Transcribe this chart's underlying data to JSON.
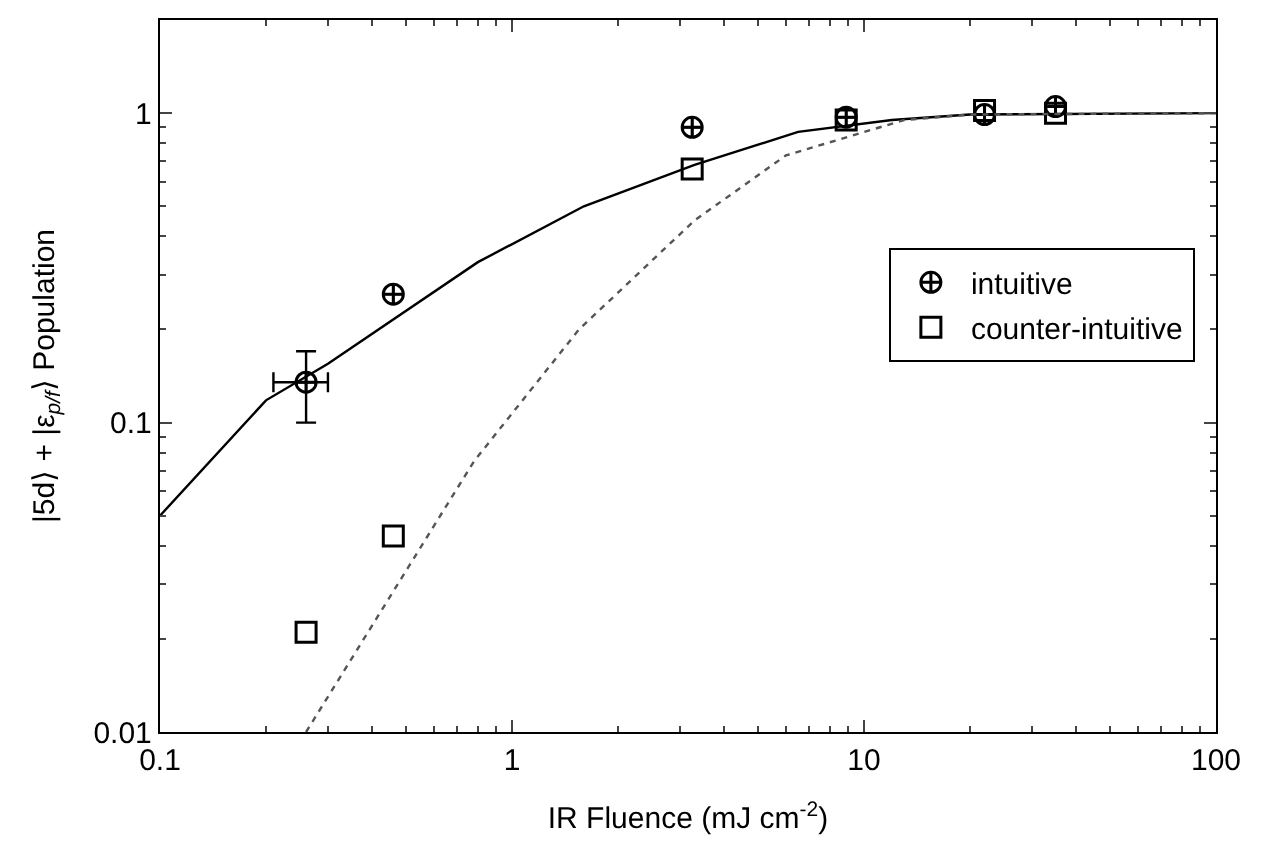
{
  "chart_data": {
    "type": "scatter",
    "xlabel": "IR Fluence (mJ cm$^{-2}$)",
    "ylabel": "|5d⟩ + |ε$_{p/f}$⟩ Population",
    "log": "xy",
    "xlim": [
      0.1,
      100
    ],
    "ylim": [
      0.01,
      2
    ],
    "xticks": [
      0.1,
      1,
      10,
      100
    ],
    "yticks": [
      0.01,
      0.1,
      1
    ],
    "legend": "right",
    "series": [
      {
        "name": "intuitive",
        "marker": "cross",
        "color": "#000000",
        "x": [
          0.26,
          0.46,
          3.25,
          8.9,
          22,
          35
        ],
        "values": [
          0.135,
          0.26,
          0.9,
          0.97,
          0.99,
          1.05
        ],
        "errors": [
          [
            0.1,
            0.17
          ],
          null,
          null,
          null,
          null,
          null
        ],
        "xerrors": [
          [
            0.21,
            0.3
          ],
          null,
          null,
          null,
          null,
          null
        ]
      },
      {
        "name": "counter-intuitive",
        "marker": "square",
        "color": "#000000",
        "x": [
          0.26,
          0.46,
          3.25,
          8.9,
          22,
          35
        ],
        "values": [
          0.021,
          0.043,
          0.66,
          0.95,
          1.02,
          1.0
        ]
      },
      {
        "type": "line",
        "line_style": "solid",
        "color": "#000000",
        "x": [
          0.1,
          0.2,
          0.3,
          0.8,
          1.6,
          3.3,
          6.5,
          12,
          20,
          100
        ],
        "values": [
          0.05,
          0.118,
          0.155,
          0.33,
          0.5,
          0.68,
          0.87,
          0.95,
          0.99,
          1.0
        ]
      },
      {
        "type": "line",
        "line_style": "dotted",
        "color": "#555555",
        "x": [
          0.26,
          0.78,
          1.55,
          3.3,
          6,
          13,
          20,
          100
        ],
        "values": [
          0.01,
          0.075,
          0.2,
          0.45,
          0.73,
          0.95,
          0.99,
          1.0
        ]
      }
    ]
  }
}
